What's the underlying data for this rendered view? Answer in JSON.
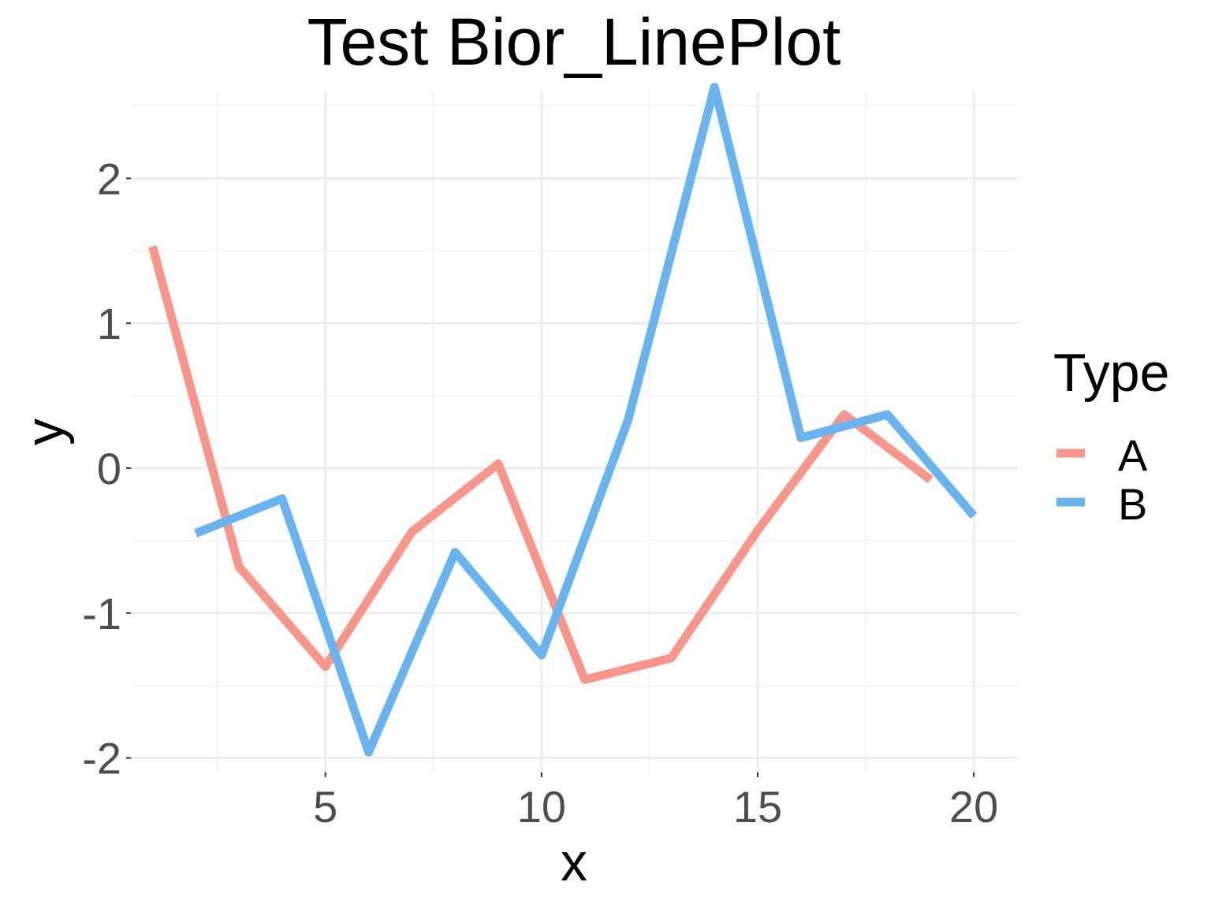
{
  "chart_data": {
    "type": "line",
    "title": "Test Bior_LinePlot",
    "xlabel": "x",
    "ylabel": "y",
    "xlim": [
      0.5,
      21.0
    ],
    "ylim": [
      -2.1,
      2.6
    ],
    "x_ticks": [
      {
        "value": 5,
        "label": "5"
      },
      {
        "value": 10,
        "label": "10"
      },
      {
        "value": 15,
        "label": "15"
      },
      {
        "value": 20,
        "label": "20"
      }
    ],
    "x_minor_ticks": [
      2.5,
      7.5,
      12.5,
      17.5
    ],
    "y_ticks": [
      {
        "value": -2,
        "label": "-2"
      },
      {
        "value": -1,
        "label": "-1"
      },
      {
        "value": 0,
        "label": "0"
      },
      {
        "value": 1,
        "label": "1"
      },
      {
        "value": 2,
        "label": "2"
      }
    ],
    "y_minor_ticks": [
      -1.5,
      -0.5,
      0.5,
      1.5,
      2.5
    ],
    "grid": true,
    "legend": {
      "title": "Type",
      "position": "right"
    },
    "series": [
      {
        "name": "A",
        "color": "#f8968b",
        "x": [
          1,
          3,
          5,
          7,
          9,
          11,
          13,
          15,
          17,
          19
        ],
        "y": [
          1.53,
          -0.68,
          -1.37,
          -0.44,
          0.03,
          -1.46,
          -1.31,
          -0.43,
          0.37,
          -0.08
        ]
      },
      {
        "name": "B",
        "color": "#69b4ee",
        "x": [
          2,
          4,
          6,
          8,
          10,
          12,
          14,
          16,
          18,
          20
        ],
        "y": [
          -0.45,
          -0.21,
          -1.96,
          -0.58,
          -1.29,
          0.33,
          2.63,
          0.21,
          0.37,
          -0.33
        ]
      }
    ]
  }
}
